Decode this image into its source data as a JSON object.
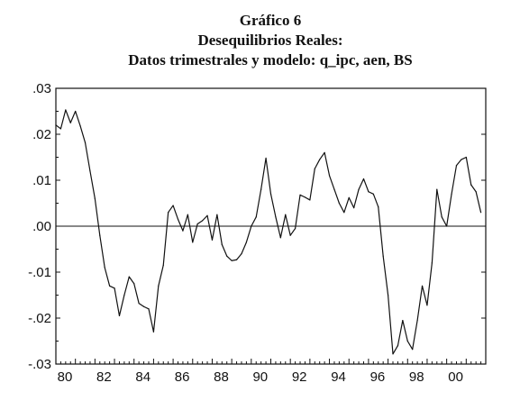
{
  "titles": {
    "line1": "Gráfico 6",
    "line2": "Desequilibrios Reales:",
    "line3": "Datos trimestrales y modelo: q_ipc, aen, BS"
  },
  "chart_data": {
    "type": "line",
    "title": "Desequilibrios Reales:",
    "subtitle": "Datos trimestrales y modelo: q_ipc, aen, BS",
    "xlabel": "",
    "ylabel": "",
    "xlim": [
      1980,
      2002
    ],
    "ylim": [
      -0.03,
      0.03
    ],
    "x_ticks": [
      {
        "value": 1980,
        "label": "80"
      },
      {
        "value": 1982,
        "label": "82"
      },
      {
        "value": 1984,
        "label": "84"
      },
      {
        "value": 1986,
        "label": "86"
      },
      {
        "value": 1988,
        "label": "88"
      },
      {
        "value": 1990,
        "label": "90"
      },
      {
        "value": 1992,
        "label": "92"
      },
      {
        "value": 1994,
        "label": "94"
      },
      {
        "value": 1996,
        "label": "96"
      },
      {
        "value": 1998,
        "label": "98"
      },
      {
        "value": 2000,
        "label": "00"
      }
    ],
    "y_ticks": [
      {
        "value": 0.03,
        "label": ".03"
      },
      {
        "value": 0.02,
        "label": ".02"
      },
      {
        "value": 0.01,
        "label": ".01"
      },
      {
        "value": 0.0,
        "label": ".00"
      },
      {
        "value": -0.01,
        "label": "-.01"
      },
      {
        "value": -0.02,
        "label": "-.02"
      },
      {
        "value": -0.03,
        "label": "-.03"
      }
    ],
    "zero_line": true,
    "grid": false,
    "legend": "none",
    "series": [
      {
        "color": "#111111",
        "x": [
          1980.0,
          1980.25,
          1980.5,
          1980.75,
          1981.0,
          1981.25,
          1981.5,
          1981.75,
          1982.0,
          1982.25,
          1982.5,
          1982.75,
          1983.0,
          1983.25,
          1983.5,
          1983.75,
          1984.0,
          1984.25,
          1984.5,
          1984.75,
          1985.0,
          1985.25,
          1985.5,
          1985.75,
          1986.0,
          1986.25,
          1986.5,
          1986.75,
          1987.0,
          1987.25,
          1987.5,
          1987.75,
          1988.0,
          1988.25,
          1988.5,
          1988.75,
          1989.0,
          1989.25,
          1989.5,
          1989.75,
          1990.0,
          1990.25,
          1990.5,
          1990.75,
          1991.0,
          1991.25,
          1991.5,
          1991.75,
          1992.0,
          1992.25,
          1992.5,
          1992.75,
          1993.0,
          1993.25,
          1993.5,
          1993.75,
          1994.0,
          1994.25,
          1994.5,
          1994.75,
          1995.0,
          1995.25,
          1995.5,
          1995.75,
          1996.0,
          1996.25,
          1996.5,
          1996.75,
          1997.0,
          1997.25,
          1997.5,
          1997.75,
          1998.0,
          1998.25,
          1998.5,
          1998.75,
          1999.0,
          1999.25,
          1999.5,
          1999.75,
          2000.0,
          2000.25,
          2000.5,
          2000.75,
          2001.0,
          2001.25,
          2001.5,
          2001.75
        ],
        "values": [
          0.022,
          0.0212,
          0.0253,
          0.0225,
          0.025,
          0.0218,
          0.0182,
          0.012,
          0.006,
          -0.002,
          -0.009,
          -0.013,
          -0.0135,
          -0.0195,
          -0.015,
          -0.011,
          -0.0125,
          -0.0168,
          -0.0175,
          -0.018,
          -0.023,
          -0.013,
          -0.0085,
          0.003,
          0.0045,
          0.0015,
          -0.001,
          0.0025,
          -0.0035,
          0.0005,
          0.0012,
          0.0023,
          -0.003,
          0.0025,
          -0.004,
          -0.0065,
          -0.0075,
          -0.0073,
          -0.006,
          -0.0035,
          0.0,
          0.002,
          0.008,
          0.0148,
          0.007,
          0.002,
          -0.0025,
          0.0025,
          -0.002,
          -0.0005,
          0.0068,
          0.0063,
          0.0057,
          0.0125,
          0.0145,
          0.016,
          0.011,
          0.008,
          0.005,
          0.003,
          0.0062,
          0.004,
          0.008,
          0.0103,
          0.0075,
          0.007,
          0.0042,
          -0.0065,
          -0.015,
          -0.0278,
          -0.026,
          -0.0205,
          -0.025,
          -0.0268,
          -0.0205,
          -0.013,
          -0.0172,
          -0.008,
          0.008,
          0.002,
          0.0,
          0.007,
          0.0132,
          0.0145,
          0.015,
          0.009,
          0.0075,
          0.003
        ]
      }
    ]
  }
}
